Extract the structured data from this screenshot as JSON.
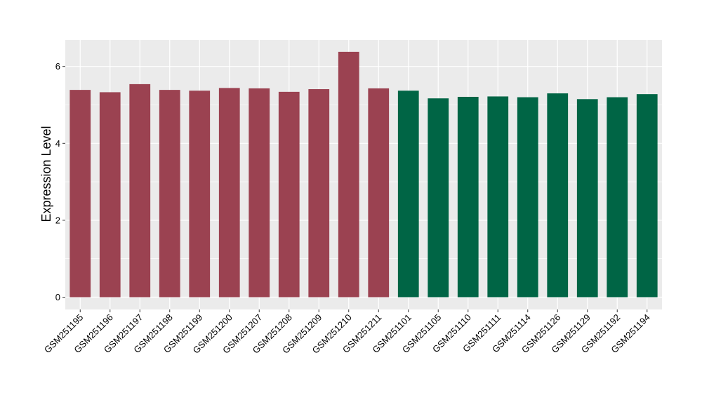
{
  "chart_data": {
    "type": "bar",
    "title": "",
    "xlabel": "",
    "ylabel": "Expression Level",
    "ylim": [
      0,
      6.6
    ],
    "yticks": [
      0,
      2,
      4,
      6
    ],
    "grid": true,
    "categories": [
      "GSM251195",
      "GSM251196",
      "GSM251197",
      "GSM251198",
      "GSM251199",
      "GSM251200",
      "GSM251207",
      "GSM251208",
      "GSM251209",
      "GSM251210",
      "GSM251211",
      "GSM251101",
      "GSM251105",
      "GSM251110",
      "GSM251111",
      "GSM251114",
      "GSM251126",
      "GSM251129",
      "GSM251192",
      "GSM251194"
    ],
    "values": [
      5.39,
      5.33,
      5.54,
      5.39,
      5.37,
      5.44,
      5.43,
      5.34,
      5.41,
      6.38,
      5.43,
      5.37,
      5.17,
      5.21,
      5.22,
      5.2,
      5.3,
      5.15,
      5.2,
      5.28
    ],
    "bar_colors": [
      "#9b4251",
      "#9b4251",
      "#9b4251",
      "#9b4251",
      "#9b4251",
      "#9b4251",
      "#9b4251",
      "#9b4251",
      "#9b4251",
      "#9b4251",
      "#9b4251",
      "#006545",
      "#006545",
      "#006545",
      "#006545",
      "#006545",
      "#006545",
      "#006545",
      "#006545",
      "#006545"
    ],
    "panel_background": "#ebebeb",
    "gridline_color": "#ffffff"
  }
}
